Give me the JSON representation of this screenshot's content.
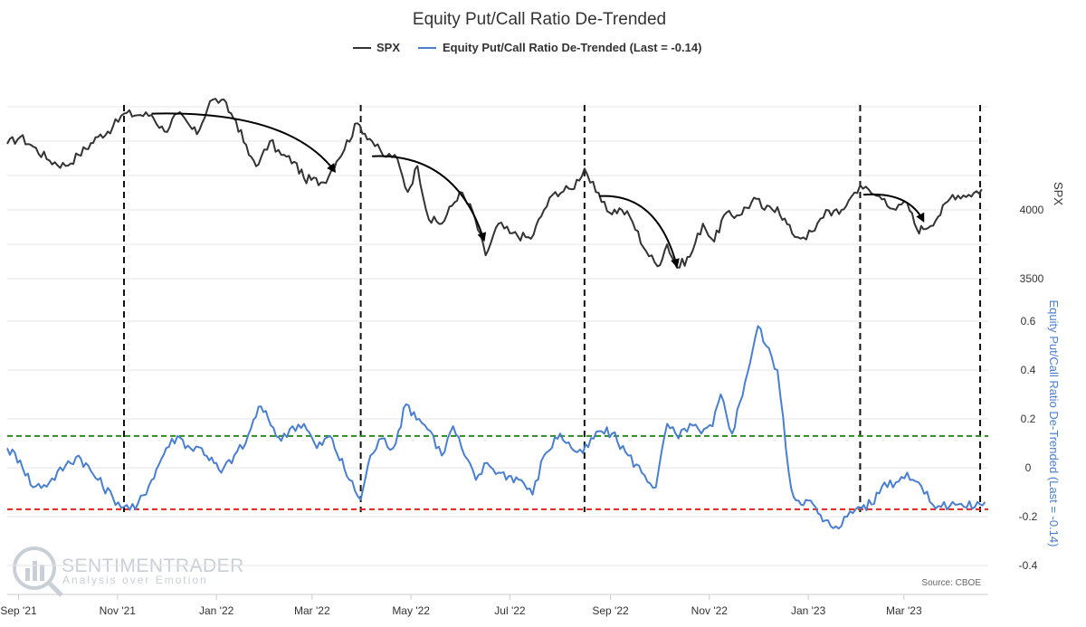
{
  "chart_data": {
    "type": "line",
    "title": "Equity Put/Call Ratio De-Trended",
    "legend": {
      "placement": "top-center",
      "items": [
        {
          "label": "SPX",
          "color": "#333333"
        },
        {
          "label": "Equity Put/Call Ratio De-Trended (Last = -0.14)",
          "color": "#4a7fcf"
        }
      ]
    },
    "x_ticks": [
      "Sep '21",
      "Nov '21",
      "Jan '22",
      "Mar '22",
      "May '22",
      "Jul '22",
      "Sep '22",
      "Nov '22",
      "Jan '23",
      "Mar '23"
    ],
    "spx_axis": {
      "title": "SPX",
      "ticks": [
        {
          "v": 4000,
          "label": "4000"
        },
        {
          "v": 3500,
          "label": "3500"
        }
      ],
      "range": [
        3350,
        4800
      ]
    },
    "ratio_axis": {
      "title": "Equity Put/Call Ratio De-Trended (Last = -0.14)",
      "ticks": [
        {
          "v": 0.6,
          "label": "0.6"
        },
        {
          "v": 0.4,
          "label": "0.4"
        },
        {
          "v": 0.2,
          "label": "0.2"
        },
        {
          "v": 0,
          "label": "0"
        },
        {
          "v": -0.2,
          "label": "-0.2"
        },
        {
          "v": -0.4,
          "label": "-0.4"
        }
      ],
      "range": [
        -0.4,
        0.6
      ]
    },
    "series": [
      {
        "name": "SPX",
        "color": "#333333",
        "axis": "spx",
        "x": [
          "2021-08-25",
          "2021-09-02",
          "2021-09-10",
          "2021-09-20",
          "2021-09-30",
          "2021-10-08",
          "2021-10-20",
          "2021-10-29",
          "2021-11-05",
          "2021-11-15",
          "2021-11-22",
          "2021-11-30",
          "2021-12-08",
          "2021-12-20",
          "2021-12-28",
          "2022-01-04",
          "2022-01-13",
          "2022-01-21",
          "2022-01-27",
          "2022-02-03",
          "2022-02-10",
          "2022-02-18",
          "2022-02-24",
          "2022-03-08",
          "2022-03-16",
          "2022-03-29",
          "2022-04-07",
          "2022-04-14",
          "2022-04-21",
          "2022-04-29",
          "2022-05-05",
          "2022-05-12",
          "2022-05-20",
          "2022-05-31",
          "2022-06-08",
          "2022-06-16",
          "2022-06-24",
          "2022-07-01",
          "2022-07-14",
          "2022-07-22",
          "2022-07-29",
          "2022-08-08",
          "2022-08-16",
          "2022-08-23",
          "2022-08-30",
          "2022-09-08",
          "2022-09-13",
          "2022-09-23",
          "2022-09-30",
          "2022-10-06",
          "2022-10-12",
          "2022-10-20",
          "2022-10-28",
          "2022-11-04",
          "2022-11-10",
          "2022-11-18",
          "2022-11-30",
          "2022-12-05",
          "2022-12-13",
          "2022-12-22",
          "2022-12-29",
          "2023-01-05",
          "2023-01-12",
          "2023-01-20",
          "2023-01-26",
          "2023-02-02",
          "2023-02-09",
          "2023-02-17",
          "2023-02-24",
          "2023-03-03",
          "2023-03-09",
          "2023-03-13",
          "2023-03-22",
          "2023-03-31",
          "2023-04-10",
          "2023-04-18"
        ],
        "values": [
          4480,
          4530,
          4460,
          4360,
          4320,
          4400,
          4530,
          4600,
          4700,
          4690,
          4690,
          4570,
          4700,
          4550,
          4790,
          4800,
          4650,
          4400,
          4330,
          4500,
          4400,
          4350,
          4230,
          4200,
          4350,
          4630,
          4500,
          4390,
          4400,
          4130,
          4320,
          3930,
          3900,
          4130,
          3990,
          3670,
          3900,
          3830,
          3790,
          4000,
          4130,
          4150,
          4300,
          4130,
          3990,
          4000,
          3950,
          3700,
          3590,
          3750,
          3580,
          3660,
          3900,
          3770,
          3960,
          3960,
          4080,
          4000,
          4020,
          3830,
          3800,
          3850,
          4000,
          3970,
          4070,
          4180,
          4120,
          4080,
          4000,
          4050,
          3860,
          3860,
          3950,
          4110,
          4110,
          4150
        ]
      },
      {
        "name": "Equity Put/Call Ratio De-Trended (Last = -0.14)",
        "color": "#4a7fcf",
        "axis": "ratio",
        "x": [
          "2021-08-25",
          "2021-09-02",
          "2021-09-10",
          "2021-09-20",
          "2021-09-30",
          "2021-10-08",
          "2021-10-20",
          "2021-10-29",
          "2021-11-05",
          "2021-11-12",
          "2021-11-22",
          "2021-12-01",
          "2021-12-08",
          "2021-12-16",
          "2021-12-23",
          "2022-01-04",
          "2022-01-12",
          "2022-01-19",
          "2022-01-27",
          "2022-02-02",
          "2022-02-10",
          "2022-02-17",
          "2022-02-24",
          "2022-03-04",
          "2022-03-12",
          "2022-03-24",
          "2022-03-31",
          "2022-04-06",
          "2022-04-13",
          "2022-04-20",
          "2022-04-28",
          "2022-05-06",
          "2022-05-13",
          "2022-05-20",
          "2022-05-27",
          "2022-06-03",
          "2022-06-10",
          "2022-06-17",
          "2022-06-24",
          "2022-07-08",
          "2022-07-15",
          "2022-07-22",
          "2022-08-01",
          "2022-08-08",
          "2022-08-15",
          "2022-08-25",
          "2022-09-02",
          "2022-09-12",
          "2022-09-22",
          "2022-09-29",
          "2022-10-06",
          "2022-10-13",
          "2022-10-20",
          "2022-10-27",
          "2022-11-03",
          "2022-11-08",
          "2022-11-15",
          "2022-11-23",
          "2022-12-01",
          "2022-12-06",
          "2022-12-13",
          "2022-12-20",
          "2022-12-23",
          "2023-01-04",
          "2023-01-10",
          "2023-01-18",
          "2023-01-25",
          "2023-02-01",
          "2023-02-09",
          "2023-02-17",
          "2023-02-24",
          "2023-03-03",
          "2023-03-10",
          "2023-03-17",
          "2023-03-24",
          "2023-03-31",
          "2023-04-07",
          "2023-04-17",
          "2023-04-20"
        ],
        "values": [
          0.08,
          0.03,
          -0.08,
          -0.06,
          0.01,
          0.05,
          -0.05,
          -0.12,
          -0.16,
          -0.17,
          -0.05,
          0.08,
          0.13,
          0.08,
          0.08,
          -0.02,
          0.05,
          0.1,
          0.25,
          0.2,
          0.11,
          0.17,
          0.18,
          0.08,
          0.13,
          -0.05,
          -0.13,
          0.05,
          0.12,
          0.08,
          0.26,
          0.2,
          0.15,
          0.05,
          0.17,
          0.05,
          -0.05,
          0.02,
          -0.02,
          -0.05,
          -0.11,
          0.05,
          0.14,
          0.08,
          0.06,
          0.15,
          0.14,
          0.05,
          -0.03,
          -0.08,
          0.18,
          0.12,
          0.18,
          0.14,
          0.17,
          0.3,
          0.14,
          0.35,
          0.58,
          0.5,
          0.4,
          -0.02,
          -0.12,
          -0.15,
          -0.22,
          -0.24,
          -0.2,
          -0.16,
          -0.15,
          -0.06,
          -0.06,
          -0.02,
          -0.06,
          -0.14,
          -0.16,
          -0.14,
          -0.16,
          -0.15,
          -0.14
        ]
      }
    ],
    "reference_lines": [
      {
        "value": 0.13,
        "axis": "ratio",
        "color": "#2e8b22",
        "style": "dashed"
      },
      {
        "value": -0.17,
        "axis": "ratio",
        "color": "#e0251b",
        "style": "dashed"
      }
    ],
    "marker_dates": [
      "2021-11-05",
      "2022-03-31",
      "2022-08-16",
      "2023-02-02",
      "2023-04-17"
    ],
    "arrows": [
      {
        "from": [
          "2021-11-22",
          4700
        ],
        "to": [
          "2022-03-15",
          4280
        ]
      },
      {
        "from": [
          "2022-04-07",
          4390
        ],
        "to": [
          "2022-06-15",
          3780
        ]
      },
      {
        "from": [
          "2022-08-25",
          4100
        ],
        "to": [
          "2022-10-12",
          3590
        ]
      },
      {
        "from": [
          "2023-02-04",
          4110
        ],
        "to": [
          "2023-03-13",
          3920
        ]
      }
    ],
    "grid": true,
    "watermark": {
      "name": "SENTIMENTRADER",
      "tagline": "Analysis over Emotion"
    },
    "source": "Source: CBOE"
  }
}
